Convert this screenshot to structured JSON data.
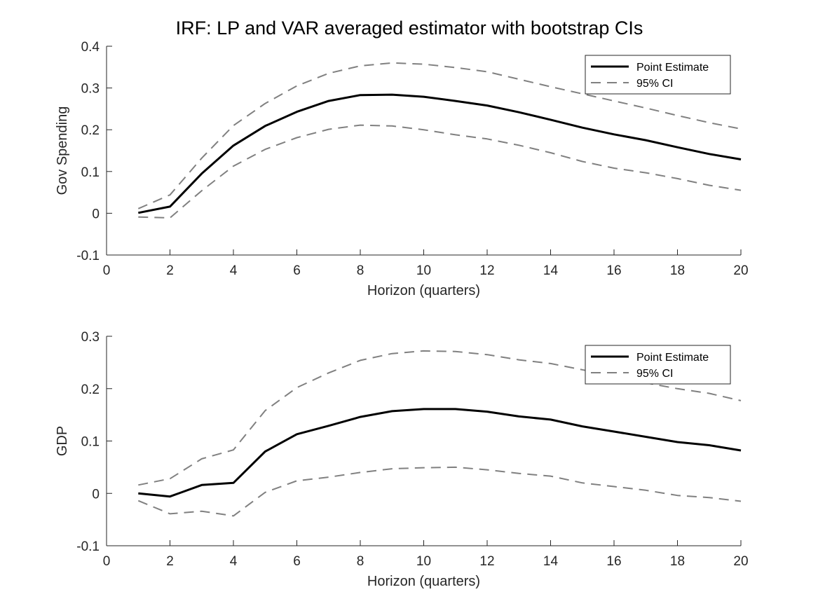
{
  "title": "IRF: LP and VAR averaged estimator with bootstrap CIs",
  "colors": {
    "point_estimate": "#000000",
    "ci": "#808080",
    "axes": "#262626"
  },
  "chart_data": [
    {
      "type": "line",
      "xlabel": "Horizon (quarters)",
      "ylabel": "Gov Spending",
      "xlim": [
        0,
        20
      ],
      "ylim": [
        -0.1,
        0.4
      ],
      "xticks": [
        0,
        2,
        4,
        6,
        8,
        10,
        12,
        14,
        16,
        18,
        20
      ],
      "xtick_labels": [
        "0",
        "2",
        "4",
        "6",
        "8",
        "10",
        "12",
        "14",
        "16",
        "18",
        "20"
      ],
      "yticks": [
        -0.1,
        0,
        0.1,
        0.2,
        0.3,
        0.4
      ],
      "ytick_labels": [
        "-0.1",
        "0",
        "0.1",
        "0.2",
        "0.3",
        "0.4"
      ],
      "grid": false,
      "legend_position": "top-right",
      "x": [
        1,
        2,
        3,
        4,
        5,
        6,
        7,
        8,
        9,
        10,
        11,
        12,
        13,
        14,
        15,
        16,
        17,
        18,
        19,
        20
      ],
      "series": [
        {
          "name": "Point Estimate",
          "style": "solid",
          "values": [
            0.001,
            0.016,
            0.095,
            0.162,
            0.209,
            0.243,
            0.269,
            0.283,
            0.284,
            0.279,
            0.269,
            0.258,
            0.242,
            0.224,
            0.205,
            0.189,
            0.175,
            0.158,
            0.142,
            0.129
          ]
        },
        {
          "name": "95% CI",
          "style": "dashed",
          "values": [
            0.011,
            0.044,
            0.132,
            0.21,
            0.263,
            0.305,
            0.335,
            0.353,
            0.36,
            0.357,
            0.349,
            0.339,
            0.321,
            0.303,
            0.286,
            0.269,
            0.252,
            0.234,
            0.217,
            0.202
          ]
        },
        {
          "style": "dashed",
          "hide_from_legend": true,
          "values": [
            -0.009,
            -0.011,
            0.054,
            0.113,
            0.153,
            0.181,
            0.201,
            0.211,
            0.209,
            0.2,
            0.188,
            0.178,
            0.163,
            0.145,
            0.124,
            0.108,
            0.097,
            0.083,
            0.067,
            0.055
          ]
        }
      ]
    },
    {
      "type": "line",
      "xlabel": "Horizon (quarters)",
      "ylabel": "GDP",
      "xlim": [
        0,
        20
      ],
      "ylim": [
        -0.1,
        0.3
      ],
      "xticks": [
        0,
        2,
        4,
        6,
        8,
        10,
        12,
        14,
        16,
        18,
        20
      ],
      "xtick_labels": [
        "0",
        "2",
        "4",
        "6",
        "8",
        "10",
        "12",
        "14",
        "16",
        "18",
        "20"
      ],
      "yticks": [
        -0.1,
        0,
        0.1,
        0.2,
        0.3
      ],
      "ytick_labels": [
        "-0.1",
        "0",
        "0.1",
        "0.2",
        "0.3"
      ],
      "grid": false,
      "legend_position": "top-right",
      "x": [
        1,
        2,
        3,
        4,
        5,
        6,
        7,
        8,
        9,
        10,
        11,
        12,
        13,
        14,
        15,
        16,
        17,
        18,
        19,
        20
      ],
      "series": [
        {
          "name": "Point Estimate",
          "style": "solid",
          "values": [
            0.0,
            -0.006,
            0.016,
            0.02,
            0.08,
            0.113,
            0.129,
            0.146,
            0.157,
            0.161,
            0.161,
            0.156,
            0.147,
            0.141,
            0.128,
            0.118,
            0.108,
            0.098,
            0.092,
            0.082
          ]
        },
        {
          "name": "95% CI",
          "style": "dashed",
          "values": [
            0.016,
            0.028,
            0.066,
            0.083,
            0.158,
            0.202,
            0.23,
            0.254,
            0.267,
            0.272,
            0.271,
            0.265,
            0.255,
            0.248,
            0.236,
            0.224,
            0.211,
            0.2,
            0.191,
            0.177
          ]
        },
        {
          "style": "dashed",
          "hide_from_legend": true,
          "values": [
            -0.014,
            -0.039,
            -0.034,
            -0.043,
            0.002,
            0.024,
            0.031,
            0.04,
            0.047,
            0.049,
            0.05,
            0.045,
            0.038,
            0.033,
            0.02,
            0.013,
            0.006,
            -0.004,
            -0.008,
            -0.015
          ]
        }
      ]
    }
  ]
}
